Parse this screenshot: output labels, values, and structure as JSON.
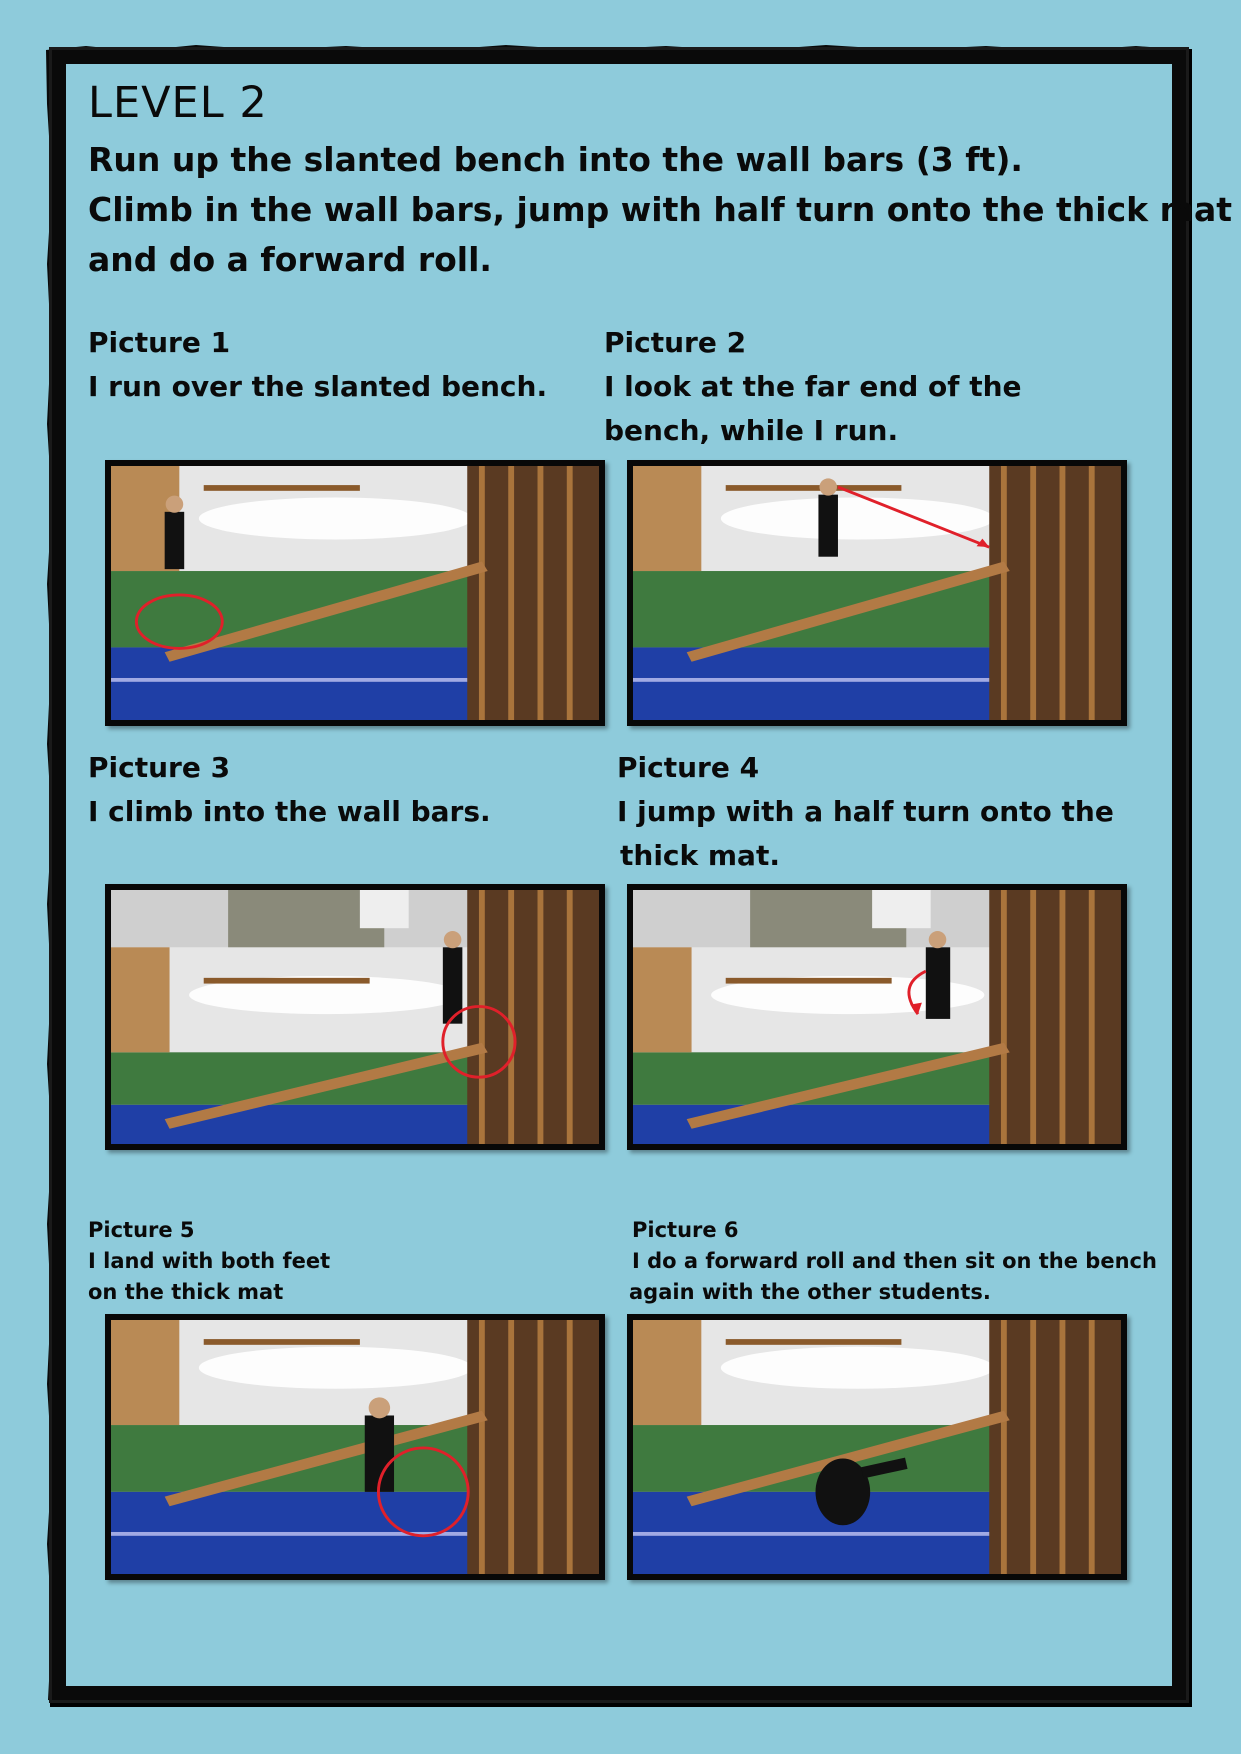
{
  "title": "LEVEL 2",
  "intro": [
    "Run up the slanted bench into the wall bars (3 ft).",
    "Climb in the wall bars, jump with half turn onto the thick mat",
    "and do a forward roll."
  ],
  "pictures": [
    {
      "heading": "Picture 1",
      "lines": [
        "I run over the slanted bench."
      ]
    },
    {
      "heading": "Picture 2",
      "lines": [
        "I look at the far end of the",
        "bench, while I run."
      ]
    },
    {
      "heading": "Picture 3",
      "lines": [
        "I climb into the wall bars."
      ]
    },
    {
      "heading": "Picture 4",
      "lines": [
        "I jump with a half turn onto the",
        "thick mat."
      ]
    },
    {
      "heading": "Picture 5",
      "lines": [
        "I land with both feet",
        "on the thick mat"
      ]
    },
    {
      "heading": "Picture 6",
      "lines": [
        "I do a forward roll and then sit on the bench",
        "again with the other students."
      ]
    }
  ],
  "colors": {
    "background": "#8ecbdb",
    "frame": "#0a0a0a",
    "annotation_red": "#e0202a"
  }
}
